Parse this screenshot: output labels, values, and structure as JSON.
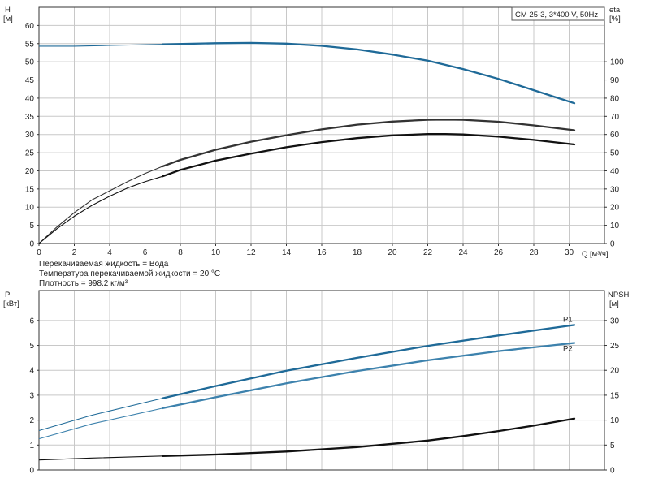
{
  "chart_data": [
    {
      "type": "line",
      "legend_box": "CM 25-3, 3*400 V, 50Hz",
      "left_axis_label": "H",
      "left_axis_unit": "[м]",
      "right_axis_label": "eta",
      "right_axis_unit": "[%]",
      "x_axis_label": "Q [м³/ч]",
      "xlim": [
        0,
        32
      ],
      "ylim_left": [
        0,
        65
      ],
      "ylim_right": [
        0,
        130
      ],
      "x_ticks": [
        0,
        2,
        4,
        6,
        8,
        10,
        12,
        14,
        16,
        18,
        20,
        22,
        24,
        26,
        28,
        30
      ],
      "y_left_ticks": [
        0,
        5,
        10,
        15,
        20,
        25,
        30,
        35,
        40,
        45,
        50,
        55,
        60
      ],
      "y_right_ticks": [
        0,
        10,
        20,
        30,
        40,
        50,
        60,
        70,
        80,
        90,
        100
      ],
      "grid": true,
      "series": [
        {
          "axis": "left",
          "color": "#1f6a98",
          "x": [
            0,
            2,
            4,
            7,
            10,
            12,
            14,
            16,
            18,
            20,
            22,
            24,
            26,
            28,
            30.3
          ],
          "values": [
            54.3,
            54.3,
            54.5,
            54.8,
            55.1,
            55.2,
            55.0,
            54.4,
            53.4,
            52.0,
            50.3,
            48.0,
            45.3,
            42.2,
            38.6
          ]
        },
        {
          "axis": "right",
          "color": "#333333",
          "x": [
            0,
            1,
            2,
            3,
            4,
            5,
            6,
            7,
            8,
            10,
            12,
            14,
            16,
            18,
            20,
            22,
            23,
            24,
            26,
            28,
            30.3
          ],
          "values": [
            0,
            9,
            17,
            24,
            29,
            34,
            38.5,
            42.5,
            46,
            51.6,
            56,
            59.6,
            62.8,
            65.4,
            67.1,
            68.1,
            68.2,
            68.1,
            67.0,
            65.0,
            62.3
          ]
        },
        {
          "axis": "right",
          "color": "#111111",
          "x": [
            0,
            1,
            2,
            3,
            4,
            5,
            6,
            7,
            8,
            10,
            12,
            14,
            16,
            18,
            20,
            22,
            23,
            24,
            26,
            28,
            30.3
          ],
          "values": [
            0,
            8,
            15,
            21,
            26,
            30.5,
            34,
            37,
            40.5,
            45.6,
            49.5,
            53,
            55.8,
            58,
            59.5,
            60.2,
            60.2,
            60.0,
            58.8,
            57.0,
            54.5
          ]
        }
      ],
      "notes": [
        "Перекачиваемая жидкость = Вода",
        "Температура перекачиваемой жидкости = 20 °C",
        "Плотность = 998.2 кг/м³"
      ]
    },
    {
      "type": "line",
      "left_axis_label": "P",
      "left_axis_unit": "[кВт]",
      "right_axis_label": "NPSH",
      "right_axis_unit": "[м]",
      "xlim": [
        0,
        32
      ],
      "ylim_left": [
        0,
        7.2
      ],
      "ylim_right": [
        0,
        36
      ],
      "y_left_ticks": [
        0,
        1,
        2,
        3,
        4,
        5,
        6
      ],
      "y_right_ticks": [
        0,
        5,
        10,
        15,
        20,
        25,
        30
      ],
      "grid": true,
      "series": [
        {
          "name": "P1",
          "axis": "left",
          "color": "#1f6a98",
          "x": [
            0,
            3,
            7,
            10,
            14,
            18,
            22,
            26,
            30.3
          ],
          "values": [
            1.58,
            2.2,
            2.88,
            3.37,
            3.98,
            4.5,
            4.98,
            5.4,
            5.82
          ]
        },
        {
          "name": "P2",
          "axis": "left",
          "color": "#3d82ad",
          "x": [
            0,
            3,
            7,
            10,
            14,
            18,
            22,
            26,
            30.3
          ],
          "values": [
            1.25,
            1.85,
            2.48,
            2.92,
            3.48,
            3.97,
            4.4,
            4.77,
            5.1
          ]
        },
        {
          "axis": "right",
          "color": "#111111",
          "x": [
            0,
            3,
            7,
            10,
            14,
            18,
            22,
            24,
            26,
            28,
            30.3
          ],
          "values": [
            2.0,
            2.4,
            2.8,
            3.1,
            3.7,
            4.6,
            5.9,
            6.8,
            7.8,
            8.9,
            10.3
          ]
        }
      ]
    }
  ]
}
